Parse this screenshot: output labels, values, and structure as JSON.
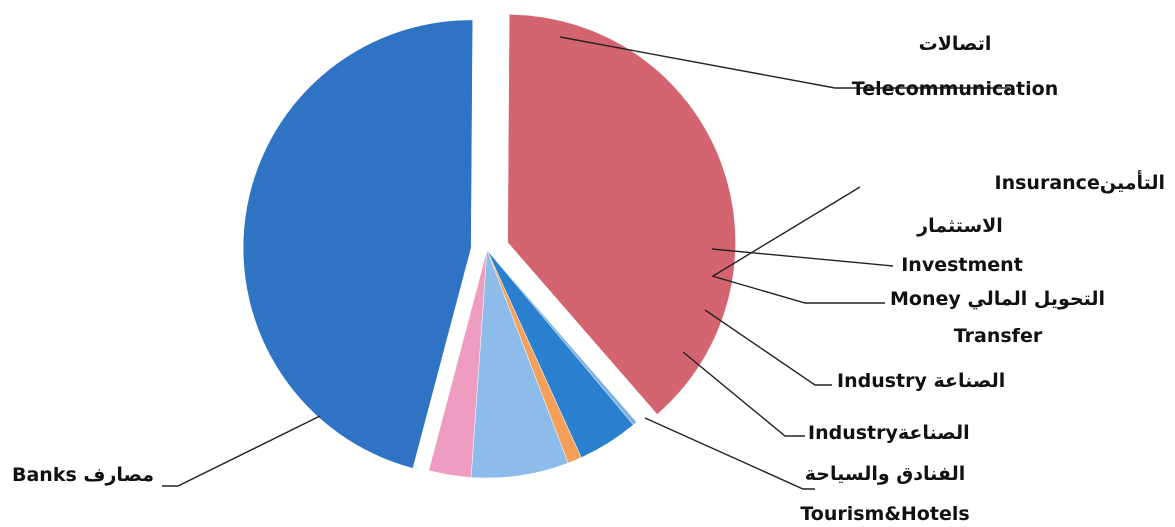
{
  "chart_data": {
    "type": "pie",
    "title": "",
    "slices": [
      {
        "label": "Telecommunication",
        "label_ar": "اتصالات",
        "value": 38.5,
        "color": "#d4646f"
      },
      {
        "label": "Insurance",
        "label_ar": "التأمين",
        "value": 0.3,
        "color": "#7fb2e0"
      },
      {
        "label": "Investment",
        "label_ar": "الاستثمار",
        "value": 4.3,
        "color": "#2a7fcf"
      },
      {
        "label": "Money Transfer",
        "label_ar": "التحويل المالي",
        "value": 1.0,
        "color": "#f5a05a"
      },
      {
        "label": "Industry",
        "label_ar": "الصناعة",
        "value": 6.9,
        "color": "#8dbbea"
      },
      {
        "label": "Tourism&Hotels",
        "label_ar": "الفنادق والسياحة",
        "value": 3.0,
        "color": "#ee9cbf"
      },
      {
        "label": "Banks",
        "label_ar": "مصارف",
        "value": 46.0,
        "color": "#2f74c4"
      }
    ],
    "labels": {
      "telecom_ar": "اتصالات",
      "telecom_en": "Telecommunication",
      "insurance": "Insurance",
      "insurance_ar": "التأمين",
      "investment_ar": "الاستثمار",
      "investment_en": "Investment",
      "money_ar": "التحويل المالي",
      "money_en": "Money",
      "money_en2": "Transfer",
      "industry1_en": "Industry",
      "industry1_ar": "الصناعة",
      "industry2_en": "Industry",
      "industry2_ar": "الصناعة",
      "tourism_ar": "الفنادق والسياحة",
      "tourism_en": "Tourism&Hotels",
      "banks_en": "Banks",
      "banks_ar": "مصارف"
    }
  }
}
